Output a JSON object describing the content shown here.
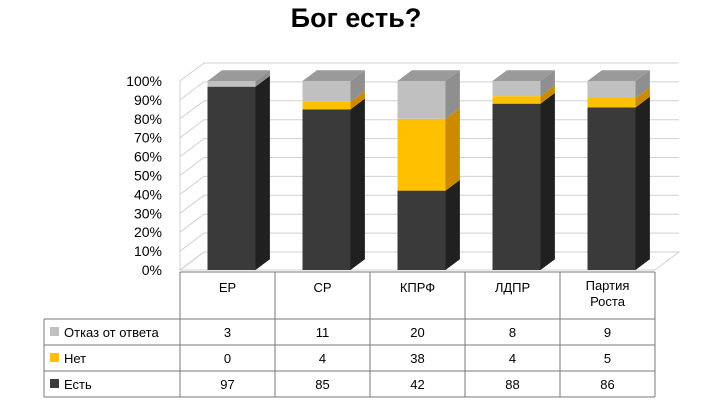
{
  "chart_data": {
    "type": "bar",
    "stacked": true,
    "percent_stacked": true,
    "three_d": true,
    "title": "Бог есть?",
    "xlabel": "",
    "ylabel": "",
    "ylim": [
      0,
      100
    ],
    "yticks": [
      "0%",
      "10%",
      "20%",
      "30%",
      "40%",
      "50%",
      "60%",
      "70%",
      "80%",
      "90%",
      "100%"
    ],
    "categories": [
      [
        "ЕР"
      ],
      [
        "СР"
      ],
      [
        "КПРФ"
      ],
      [
        "ЛДПР"
      ],
      [
        "Партия",
        "Роста"
      ]
    ],
    "series": [
      {
        "name": "Есть",
        "values": [
          97,
          85,
          42,
          88,
          86
        ],
        "color": "#3a3a3a",
        "side_color": "#202020",
        "top_color": "#555555"
      },
      {
        "name": "Нет",
        "values": [
          0,
          4,
          38,
          4,
          5
        ],
        "color": "#ffc000",
        "side_color": "#cc8a00",
        "top_color": "#ffd24d"
      },
      {
        "name": "Отказ от ответа",
        "values": [
          3,
          11,
          20,
          8,
          9
        ],
        "color": "#c0c0c0",
        "side_color": "#8f8f8f",
        "top_color": "#9a9a9a"
      }
    ],
    "legend_placement": "data-table-left",
    "grid": true,
    "data_table": true,
    "gridline_color": "#d0d0d0"
  }
}
